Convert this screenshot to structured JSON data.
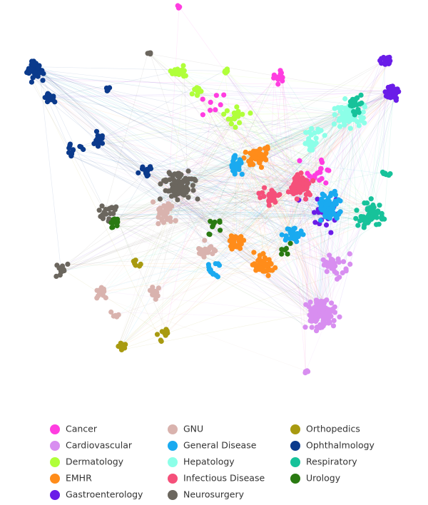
{
  "legend": {
    "items": [
      {
        "label": "Cancer",
        "color": "#ff3de0"
      },
      {
        "label": "Cardiovascular",
        "color": "#d88ef0"
      },
      {
        "label": "Dermatology",
        "color": "#b0ff3a"
      },
      {
        "label": "EMHR",
        "color": "#ff8c1a"
      },
      {
        "label": "Gastroenterology",
        "color": "#6a1de8"
      },
      {
        "label": "GNU",
        "color": "#d9b3ae"
      },
      {
        "label": "General Disease",
        "color": "#1aaaf0"
      },
      {
        "label": "Hepatology",
        "color": "#8cffe8"
      },
      {
        "label": "Infectious Disease",
        "color": "#f5507a"
      },
      {
        "label": "Neurosurgery",
        "color": "#6b665e"
      },
      {
        "label": "Orthopedics",
        "color": "#a89a10"
      },
      {
        "label": "Ophthalmology",
        "color": "#0b3a8c"
      },
      {
        "label": "Respiratory",
        "color": "#17c29a"
      },
      {
        "label": "Urology",
        "color": "#2a7a12"
      }
    ]
  }
}
